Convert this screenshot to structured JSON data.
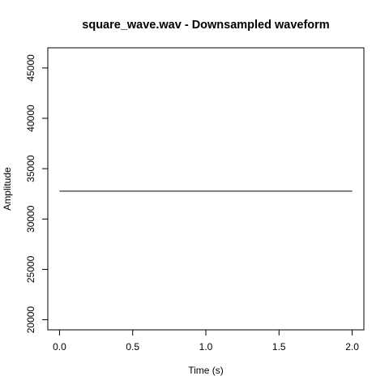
{
  "chart_data": {
    "type": "line",
    "title": "square_wave.wav - Downsampled waveform",
    "xlabel": "Time (s)",
    "ylabel": "Amplitude",
    "xlim": [
      -0.08,
      2.08
    ],
    "ylim": [
      19000,
      47000
    ],
    "x_ticks": [
      0.0,
      0.5,
      1.0,
      1.5,
      2.0
    ],
    "x_tick_labels": [
      "0.0",
      "0.5",
      "1.0",
      "1.5",
      "2.0"
    ],
    "y_ticks": [
      20000,
      25000,
      30000,
      35000,
      40000,
      45000
    ],
    "y_tick_labels": [
      "20000",
      "25000",
      "30000",
      "35000",
      "40000",
      "45000"
    ],
    "grid": false,
    "legend": "none",
    "series": [
      {
        "x": [
          0.0,
          2.0
        ],
        "values": [
          32768,
          32768
        ]
      }
    ]
  }
}
